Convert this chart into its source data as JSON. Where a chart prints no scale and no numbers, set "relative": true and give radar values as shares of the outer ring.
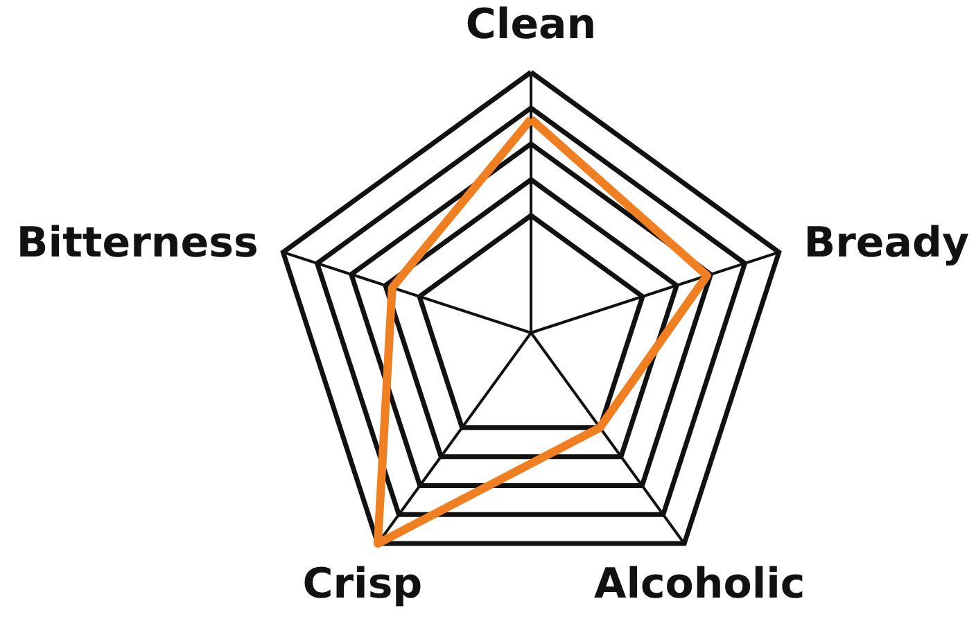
{
  "chart_data": {
    "type": "radar",
    "relative": true,
    "grid": true,
    "categories": [
      "Clean",
      "Bready",
      "Alcoholic",
      "Crisp",
      "Bitterness"
    ],
    "series": [
      {
        "color": "#f07f21",
        "values": [
          0.82,
          0.71,
          0.45,
          1.0,
          0.56
        ]
      }
    ]
  }
}
